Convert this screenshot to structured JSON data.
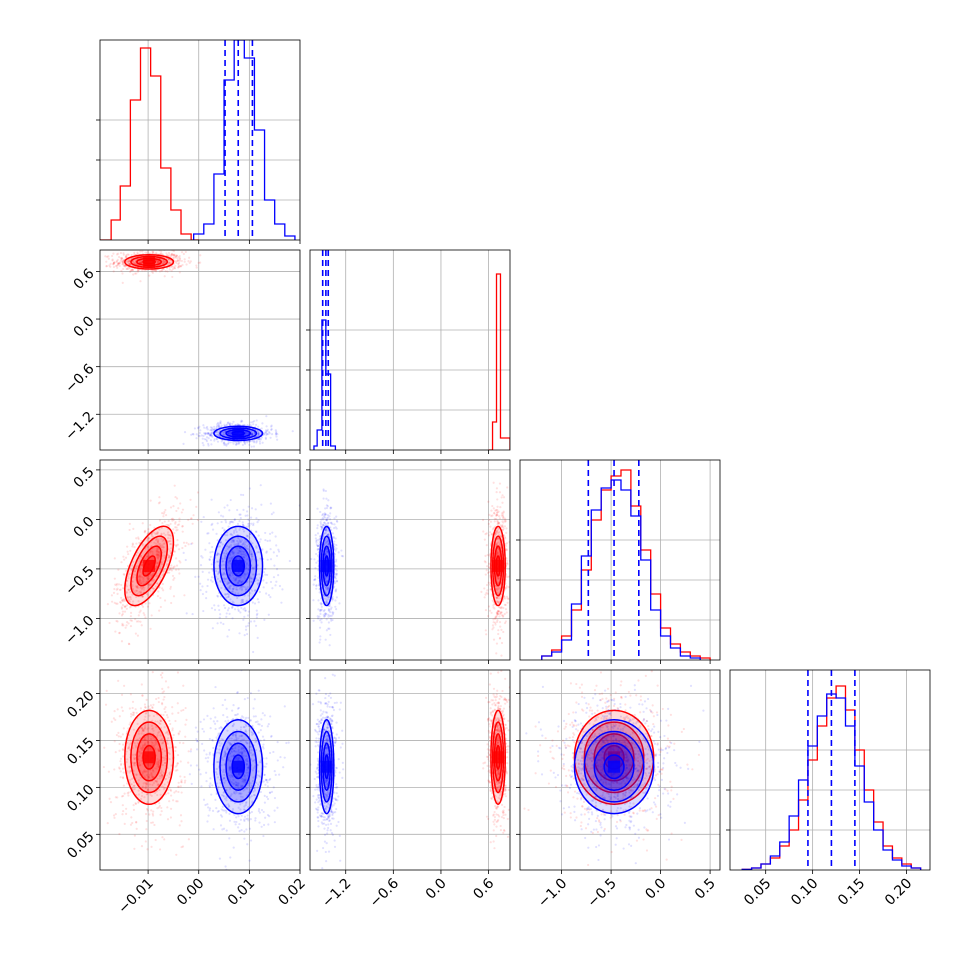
{
  "chart_data": {
    "type": "corner",
    "title": "",
    "grid": true,
    "colors": {
      "series_a": "#ff0000",
      "series_b": "#0000ff"
    },
    "parameters": [
      {
        "range": [
          -0.0195,
          0.02
        ],
        "ticks": [
          -0.01,
          0.0,
          0.01,
          0.02
        ],
        "tick_labels": [
          "−0.01",
          "0.00",
          "0.01",
          "0.02"
        ]
      },
      {
        "range": [
          -1.65,
          0.87
        ],
        "ticks": [
          -1.2,
          -0.6,
          0.0,
          0.6
        ],
        "tick_labels": [
          "−1.2",
          "−0.6",
          "0.0",
          "0.6"
        ]
      },
      {
        "range": [
          -1.42,
          0.6
        ],
        "ticks": [
          -1.0,
          -0.5,
          0.0,
          0.5
        ],
        "tick_labels": [
          "−1.0",
          "−0.5",
          "0.0",
          "0.5"
        ]
      },
      {
        "range": [
          0.012,
          0.225
        ],
        "ticks": [
          0.05,
          0.1,
          0.15,
          0.2
        ],
        "tick_labels": [
          "0.05",
          "0.10",
          "0.15",
          "0.20"
        ]
      }
    ],
    "series": [
      {
        "color": "#ff0000",
        "means": [
          -0.0098,
          0.72,
          -0.47,
          0.132
        ],
        "sigmas": [
          0.0024,
          0.045,
          0.2,
          0.025
        ],
        "correlations": [
          [
            0,
            2,
            0.6
          ]
        ],
        "hist1d": [
          {
            "bins": [
              [
                -0.0195,
                -0.0173,
                0.0
              ],
              [
                -0.0173,
                -0.0155,
                0.1
              ],
              [
                -0.0155,
                -0.0135,
                0.27
              ],
              [
                -0.0135,
                -0.0115,
                0.7
              ],
              [
                -0.0115,
                -0.0095,
                0.96
              ],
              [
                -0.0095,
                -0.0075,
                0.82
              ],
              [
                -0.0075,
                -0.0055,
                0.36
              ],
              [
                -0.0055,
                -0.0035,
                0.15
              ],
              [
                -0.0035,
                -0.0015,
                0.03
              ],
              [
                -0.0015,
                0.0,
                0.0
              ]
            ]
          },
          {
            "bins": [
              [
                0.6,
                0.65,
                0.0
              ],
              [
                0.65,
                0.7,
                0.14
              ],
              [
                0.7,
                0.75,
                0.88
              ],
              [
                0.75,
                0.8,
                0.06
              ],
              [
                0.8,
                0.87,
                0.06
              ]
            ]
          },
          {
            "bins": [
              [
                -1.2,
                -1.1,
                0.02
              ],
              [
                -1.1,
                -1.0,
                0.05
              ],
              [
                -1.0,
                -0.9,
                0.12
              ],
              [
                -0.9,
                -0.8,
                0.25
              ],
              [
                -0.8,
                -0.7,
                0.45
              ],
              [
                -0.7,
                -0.6,
                0.7
              ],
              [
                -0.6,
                -0.5,
                0.85
              ],
              [
                -0.5,
                -0.4,
                0.92
              ],
              [
                -0.4,
                -0.3,
                0.95
              ],
              [
                -0.3,
                -0.2,
                0.77
              ],
              [
                -0.2,
                -0.1,
                0.55
              ],
              [
                -0.1,
                0.0,
                0.33
              ],
              [
                0.0,
                0.1,
                0.16
              ],
              [
                0.1,
                0.2,
                0.08
              ],
              [
                0.2,
                0.3,
                0.04
              ],
              [
                0.3,
                0.4,
                0.02
              ],
              [
                0.4,
                0.5,
                0.01
              ]
            ]
          },
          {
            "bins": [
              [
                0.025,
                0.035,
                0.003
              ],
              [
                0.035,
                0.045,
                0.01
              ],
              [
                0.045,
                0.055,
                0.03
              ],
              [
                0.055,
                0.065,
                0.06
              ],
              [
                0.065,
                0.075,
                0.12
              ],
              [
                0.075,
                0.085,
                0.2
              ],
              [
                0.085,
                0.095,
                0.35
              ],
              [
                0.095,
                0.105,
                0.55
              ],
              [
                0.105,
                0.115,
                0.72
              ],
              [
                0.115,
                0.125,
                0.86
              ],
              [
                0.125,
                0.135,
                0.92
              ],
              [
                0.135,
                0.145,
                0.8
              ],
              [
                0.145,
                0.155,
                0.6
              ],
              [
                0.155,
                0.165,
                0.4
              ],
              [
                0.165,
                0.175,
                0.24
              ],
              [
                0.175,
                0.185,
                0.12
              ],
              [
                0.185,
                0.195,
                0.06
              ],
              [
                0.195,
                0.205,
                0.03
              ],
              [
                0.205,
                0.215,
                0.01
              ]
            ]
          }
        ]
      },
      {
        "color": "#0000ff",
        "means": [
          0.0078,
          -1.44,
          -0.47,
          0.122
        ],
        "sigmas": [
          0.0024,
          0.045,
          0.2,
          0.025
        ],
        "correlations": [],
        "quantiles": [
          [
            0.0052,
            0.0078,
            0.0106
          ],
          [
            -1.49,
            -1.45,
            -1.42
          ],
          [
            -0.73,
            -0.47,
            -0.22
          ],
          [
            0.095,
            0.12,
            0.145
          ]
        ],
        "hist1d": [
          {
            "bins": [
              [
                -0.001,
                0.001,
                0.03
              ],
              [
                0.001,
                0.003,
                0.08
              ],
              [
                0.003,
                0.005,
                0.33
              ],
              [
                0.005,
                0.007,
                0.8
              ],
              [
                0.007,
                0.009,
                1.0
              ],
              [
                0.009,
                0.011,
                0.91
              ],
              [
                0.011,
                0.013,
                0.55
              ],
              [
                0.013,
                0.015,
                0.2
              ],
              [
                0.015,
                0.017,
                0.08
              ],
              [
                0.017,
                0.019,
                0.02
              ]
            ]
          },
          {
            "bins": [
              [
                -1.6,
                -1.56,
                0.02
              ],
              [
                -1.56,
                -1.5,
                0.1
              ],
              [
                -1.5,
                -1.45,
                0.65
              ],
              [
                -1.45,
                -1.39,
                0.38
              ],
              [
                -1.39,
                -1.33,
                0.02
              ]
            ]
          },
          {
            "bins": [
              [
                -1.2,
                -1.1,
                0.02
              ],
              [
                -1.1,
                -1.0,
                0.04
              ],
              [
                -1.0,
                -0.9,
                0.1
              ],
              [
                -0.9,
                -0.8,
                0.28
              ],
              [
                -0.8,
                -0.7,
                0.52
              ],
              [
                -0.7,
                -0.6,
                0.75
              ],
              [
                -0.6,
                -0.5,
                0.86
              ],
              [
                -0.5,
                -0.4,
                0.9
              ],
              [
                -0.4,
                -0.3,
                0.85
              ],
              [
                -0.3,
                -0.2,
                0.72
              ],
              [
                -0.2,
                -0.1,
                0.5
              ],
              [
                -0.1,
                0.0,
                0.25
              ],
              [
                0.0,
                0.1,
                0.12
              ],
              [
                0.1,
                0.2,
                0.06
              ],
              [
                0.2,
                0.3,
                0.02
              ],
              [
                0.3,
                0.4,
                0.01
              ]
            ]
          },
          {
            "bins": [
              [
                0.025,
                0.035,
                0.003
              ],
              [
                0.035,
                0.045,
                0.01
              ],
              [
                0.045,
                0.055,
                0.03
              ],
              [
                0.055,
                0.065,
                0.07
              ],
              [
                0.065,
                0.075,
                0.14
              ],
              [
                0.075,
                0.085,
                0.27
              ],
              [
                0.085,
                0.095,
                0.45
              ],
              [
                0.095,
                0.105,
                0.62
              ],
              [
                0.105,
                0.115,
                0.77
              ],
              [
                0.115,
                0.125,
                0.88
              ],
              [
                0.125,
                0.135,
                0.86
              ],
              [
                0.135,
                0.145,
                0.72
              ],
              [
                0.145,
                0.155,
                0.52
              ],
              [
                0.155,
                0.165,
                0.34
              ],
              [
                0.165,
                0.175,
                0.2
              ],
              [
                0.175,
                0.185,
                0.1
              ],
              [
                0.185,
                0.195,
                0.05
              ],
              [
                0.195,
                0.205,
                0.02
              ],
              [
                0.205,
                0.215,
                0.01
              ]
            ]
          }
        ]
      }
    ]
  }
}
